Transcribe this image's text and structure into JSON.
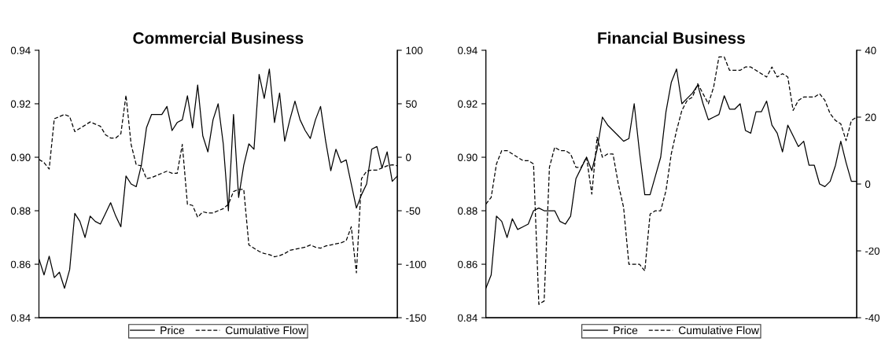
{
  "chart_data": [
    {
      "type": "line",
      "title": "Commercial Business",
      "legend": "bottom",
      "grid": false,
      "categories": [
        null,
        null,
        null,
        null,
        null,
        null,
        null,
        null,
        null,
        null,
        null,
        null,
        null,
        null,
        null,
        null,
        null,
        null,
        null,
        null,
        null,
        null,
        null,
        null,
        null,
        null,
        null,
        null,
        null,
        null,
        null,
        null,
        null,
        null,
        null,
        null,
        null,
        null,
        null,
        null,
        null,
        null,
        null,
        null,
        null,
        null,
        null,
        null,
        null,
        null,
        null,
        null,
        null,
        null,
        null,
        null,
        null,
        null,
        null,
        null,
        null,
        null,
        null,
        null,
        null,
        null,
        null,
        null,
        null,
        null,
        null
      ],
      "ylim": [
        0.84,
        0.94
      ],
      "yticks": [
        0.84,
        0.86,
        0.88,
        {
          "value": 0.9,
          "label": "0.90"
        },
        0.92,
        0.94
      ],
      "y2lim": [
        -150,
        100
      ],
      "y2ticks": [
        -150,
        -100,
        -50,
        0,
        50,
        100
      ],
      "series": [
        {
          "name": "Price",
          "color": "#000000",
          "line_style": "solid",
          "values": [
            0.862,
            0.856,
            0.863,
            0.855,
            0.857,
            0.851,
            0.858,
            0.879,
            0.876,
            0.87,
            0.878,
            0.876,
            0.875,
            0.879,
            0.883,
            0.878,
            0.874,
            0.893,
            0.89,
            0.889,
            0.897,
            0.911,
            0.916,
            0.916,
            0.916,
            0.919,
            0.91,
            0.913,
            0.914,
            0.923,
            0.911,
            0.927,
            0.908,
            0.902,
            0.914,
            0.92,
            0.905,
            0.88,
            0.916,
            0.885,
            0.897,
            0.905,
            0.903,
            0.931,
            0.922,
            0.933,
            0.913,
            0.924,
            0.906,
            0.914,
            0.921,
            0.914,
            0.91,
            0.907,
            0.914,
            0.919,
            0.906,
            0.895,
            0.903,
            0.898,
            0.899,
            0.89,
            0.881,
            0.886,
            0.89,
            0.903,
            0.904,
            0.896,
            0.902,
            0.891,
            0.893
          ]
        },
        {
          "name": "Cumulative Flow",
          "color": "#000000",
          "line_style": "dashed",
          "axis": "y2",
          "values": [
            -2,
            -5,
            -11,
            36,
            38,
            40,
            38,
            24,
            27,
            30,
            33,
            31,
            29,
            21,
            18,
            18,
            22,
            58,
            12,
            -7,
            -8,
            -20,
            -19,
            -17,
            -15,
            -13,
            -15,
            -15,
            12,
            -44,
            -45,
            -56,
            -51,
            -52,
            -52,
            -50,
            -48,
            -44,
            -32,
            -30,
            -30,
            -82,
            -85,
            -88,
            -90,
            -91,
            -93,
            -92,
            -90,
            -87,
            -86,
            -85,
            -84,
            -82,
            -84,
            -85,
            -83,
            -82,
            -81,
            -80,
            -78,
            -65,
            -108,
            -20,
            -13,
            -12,
            -12,
            -10,
            -8,
            -7,
            -8
          ]
        }
      ]
    },
    {
      "type": "line",
      "title": "Financial Business",
      "legend": "bottom",
      "grid": false,
      "categories": [
        null,
        null,
        null,
        null,
        null,
        null,
        null,
        null,
        null,
        null,
        null,
        null,
        null,
        null,
        null,
        null,
        null,
        null,
        null,
        null,
        null,
        null,
        null,
        null,
        null,
        null,
        null,
        null,
        null,
        null,
        null,
        null,
        null,
        null,
        null,
        null,
        null,
        null,
        null,
        null,
        null,
        null,
        null,
        null,
        null,
        null,
        null,
        null,
        null,
        null,
        null,
        null,
        null,
        null,
        null,
        null,
        null,
        null,
        null,
        null,
        null,
        null,
        null,
        null,
        null,
        null,
        null,
        null,
        null,
        null,
        null
      ],
      "ylim": [
        0.84,
        0.94
      ],
      "yticks": [
        0.84,
        0.86,
        0.88,
        {
          "value": 0.9,
          "label": "0.90"
        },
        0.92,
        0.94
      ],
      "y2lim": [
        -40,
        40
      ],
      "y2ticks": [
        -40,
        -20,
        0,
        20,
        40
      ],
      "series": [
        {
          "name": "Price",
          "color": "#000000",
          "line_style": "solid",
          "values": [
            0.851,
            0.856,
            0.878,
            0.876,
            0.87,
            0.877,
            0.873,
            0.874,
            0.875,
            0.88,
            0.881,
            0.88,
            0.88,
            0.88,
            0.876,
            0.875,
            0.878,
            0.892,
            0.896,
            0.9,
            0.895,
            0.903,
            0.915,
            0.912,
            0.91,
            0.908,
            0.906,
            0.907,
            0.92,
            0.902,
            0.886,
            0.886,
            0.893,
            0.9,
            0.917,
            0.928,
            0.933,
            0.92,
            0.922,
            0.924,
            0.927,
            0.92,
            0.914,
            0.915,
            0.916,
            0.923,
            0.918,
            0.918,
            0.92,
            0.91,
            0.909,
            0.917,
            0.917,
            0.921,
            0.912,
            0.909,
            0.902,
            0.912,
            0.908,
            0.904,
            0.906,
            0.897,
            0.897,
            0.89,
            0.889,
            0.891,
            0.897,
            0.906,
            0.898,
            0.891,
            0.891
          ]
        },
        {
          "name": "Cumulative Flow",
          "color": "#000000",
          "line_style": "dashed",
          "axis": "y2",
          "values": [
            -6,
            -4,
            6,
            10,
            10,
            9,
            8,
            7,
            7,
            6,
            -36,
            -35,
            5,
            11,
            10,
            10,
            9,
            5,
            5,
            8,
            -3,
            14,
            8,
            9,
            9,
            0,
            -7,
            -24,
            -24,
            -24,
            -26,
            -9,
            -8,
            -8,
            -2,
            9,
            16,
            22,
            25,
            26,
            30,
            27,
            24,
            29,
            38,
            38,
            34,
            34,
            34,
            35,
            35,
            34,
            33,
            32,
            35,
            32,
            33,
            32,
            22,
            25,
            26,
            26,
            26,
            27,
            25,
            21,
            19,
            18,
            13,
            19,
            20
          ]
        }
      ]
    }
  ]
}
